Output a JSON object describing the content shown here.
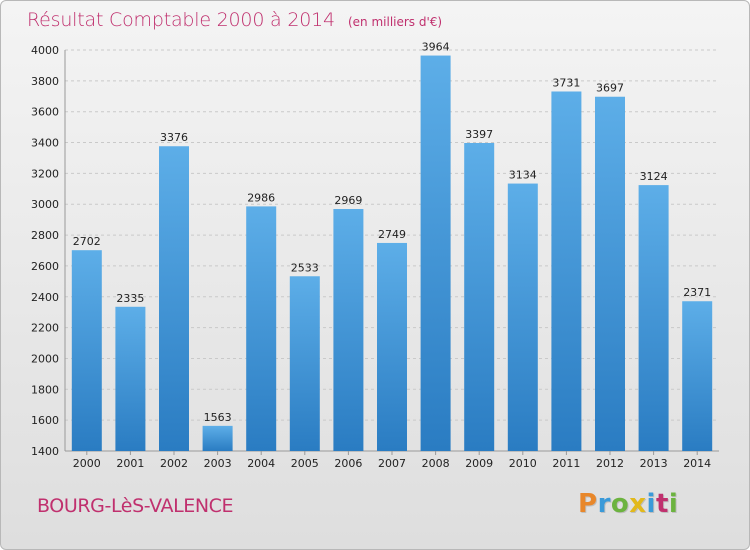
{
  "title": {
    "main": "Résultat Comptable 2000 à 2014",
    "unit": "(en milliers d'€)"
  },
  "location": "BOURG-LèS-VALENCE",
  "logo": {
    "letters": [
      "P",
      "r",
      "o",
      "x",
      "i",
      "t",
      "i"
    ],
    "colors": [
      "#e8872a",
      "#3a9ad9",
      "#6cb33f",
      "#e2b91c",
      "#3a9ad9",
      "#c0306e",
      "#6cb33f"
    ]
  },
  "colors": {
    "bar_top": "#5daee8",
    "bar_bottom": "#2a7cc2",
    "text_accent": "#c0306e"
  },
  "chart_data": {
    "type": "bar",
    "categories": [
      "2000",
      "2001",
      "2002",
      "2003",
      "2004",
      "2005",
      "2006",
      "2007",
      "2008",
      "2009",
      "2010",
      "2011",
      "2012",
      "2013",
      "2014"
    ],
    "values": [
      2702,
      2335,
      3376,
      1563,
      2986,
      2533,
      2969,
      2749,
      3964,
      3397,
      3134,
      3731,
      3697,
      3124,
      2371
    ],
    "ylim": [
      1400,
      4000
    ],
    "yticks": [
      1400,
      1600,
      1800,
      2000,
      2200,
      2400,
      2600,
      2800,
      3000,
      3200,
      3400,
      3600,
      3800,
      4000
    ],
    "grid": true,
    "legend": "none"
  }
}
